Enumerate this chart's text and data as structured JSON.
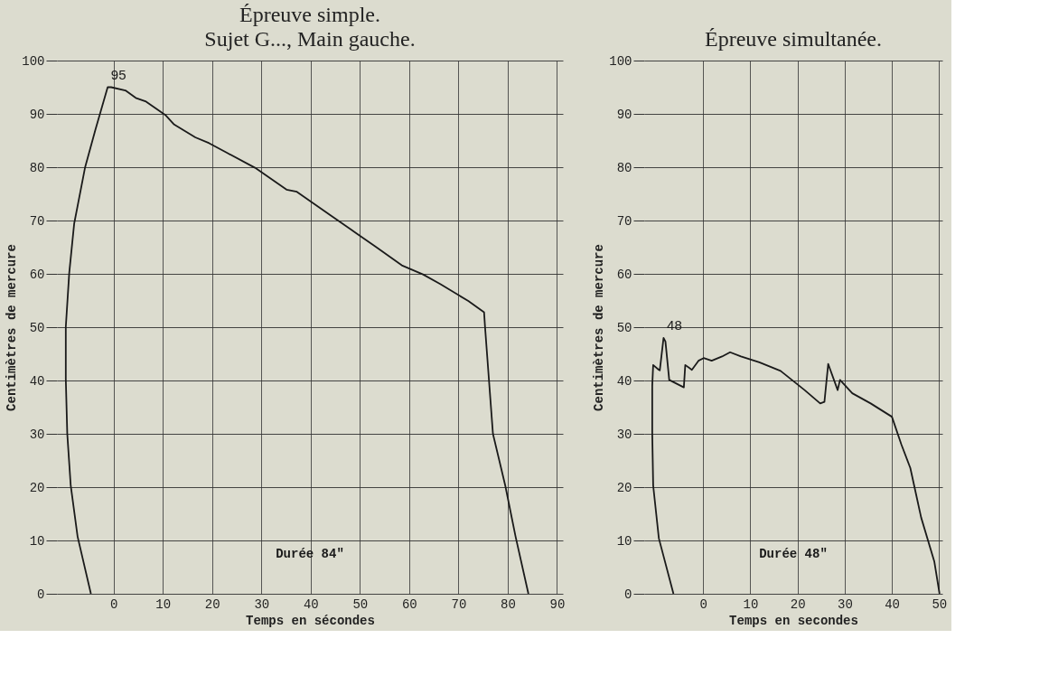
{
  "chart_data": [
    {
      "type": "line",
      "title": "Épreuve simple.",
      "subtitle": "Sujet G..., Main gauche.",
      "xlabel": "Temps en sécondes",
      "ylabel": "Centimètres de mercure",
      "x": [
        -4.6,
        -7.3,
        -8.7,
        -9.4,
        -9.7,
        -9.7,
        -9.0,
        -8.0,
        -5.8,
        -3.7,
        -1.2,
        -0.5,
        2.4,
        4.5,
        6.6,
        10.5,
        12.3,
        16.6,
        19.4,
        23.0,
        28.7,
        35.1,
        37.2,
        44.3,
        49.3,
        53.2,
        58.5,
        62.8,
        66.3,
        72.0,
        75.2,
        75.4,
        77.0,
        79.5,
        81.6,
        84.2
      ],
      "series": [
        {
          "color": "#1a1a1a",
          "values": [
            0,
            10.7,
            20.3,
            30,
            40.3,
            50,
            60.2,
            69.4,
            79.9,
            87,
            95,
            95,
            94.4,
            93,
            92.3,
            89.8,
            88,
            85.6,
            84.5,
            82.7,
            79.9,
            75.8,
            75.4,
            70.8,
            67.6,
            65.1,
            61.6,
            59.9,
            58.1,
            54.9,
            52.8,
            50,
            30,
            20.3,
            10.7,
            0
          ]
        }
      ],
      "xlim": [
        -11.5,
        91.2
      ],
      "xticks": [
        0,
        10,
        20,
        30,
        40,
        50,
        60,
        70,
        80,
        90
      ],
      "ylim": [
        0,
        100
      ],
      "yticks": [
        0,
        10,
        20,
        30,
        40,
        50,
        60,
        70,
        80,
        90,
        100
      ],
      "grid": true,
      "annotations": [
        {
          "text": "95",
          "x": -1.2,
          "y": 95
        },
        "Durée 84\""
      ]
    },
    {
      "type": "line",
      "title": "Épreuve simultanée.",
      "xlabel": "Temps en secondes",
      "ylabel": "Centimètres de mercure",
      "x": [
        -6.3,
        -9.4,
        -10.6,
        -10.8,
        -10.8,
        -10.6,
        -9.4,
        -9.2,
        -8.4,
        -8.0,
        -7.2,
        -4.1,
        -3.8,
        -2.4,
        -1.0,
        0.1,
        1.8,
        4.0,
        5.7,
        8.0,
        11.9,
        16.4,
        21.5,
        24.8,
        25.7,
        26.5,
        28.5,
        29.0,
        31.6,
        35.5,
        40.0,
        42.0,
        43.9,
        46.2,
        49.0,
        50.1
      ],
      "series": [
        {
          "color": "#1a1a1a",
          "values": [
            0,
            10.4,
            20.3,
            30.2,
            39,
            42.9,
            42,
            41.9,
            48,
            47.3,
            40.1,
            38.7,
            42.9,
            42,
            43.7,
            44.2,
            43.7,
            44.5,
            45.3,
            44.5,
            43.4,
            41.8,
            38.2,
            35.7,
            36,
            43.1,
            38.2,
            40.1,
            37.6,
            35.7,
            33.2,
            28,
            23.6,
            14.3,
            6,
            0
          ]
        }
      ],
      "xlim": [
        -12.5,
        50.7
      ],
      "xticks": [
        0,
        10,
        20,
        30,
        40,
        50
      ],
      "ylim": [
        0,
        100
      ],
      "yticks": [
        0,
        10,
        20,
        30,
        40,
        50,
        60,
        70,
        80,
        90,
        100
      ],
      "grid": true,
      "annotations": [
        {
          "text": "48",
          "x": -8.4,
          "y": 48
        },
        "Durée 48\""
      ]
    }
  ]
}
